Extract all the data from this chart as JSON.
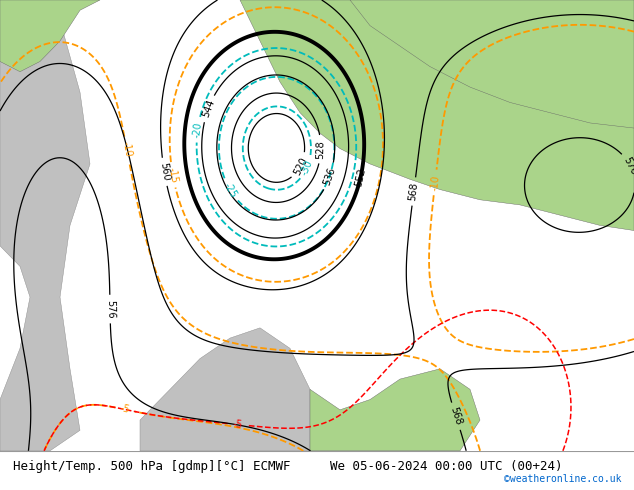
{
  "title_left": "Height/Temp. 500 hPa [gdmp][°C] ECMWF",
  "title_right": "We 05-06-2024 00:00 UTC (00+24)",
  "credit": "©weatheronline.co.uk",
  "credit_color": "#0066cc",
  "bg_color": "#ffffff",
  "land_color_green": "#aad48a",
  "land_color_gray": "#c0c0c0",
  "sea_color": "#d0d0d0",
  "height_contour_color": "#000000",
  "temp_warm_color": "#ff9900",
  "temp_cold_color": "#00bbbb",
  "temp_vcold_color": "#ff0000",
  "font_size_labels": 7,
  "font_size_title": 9
}
